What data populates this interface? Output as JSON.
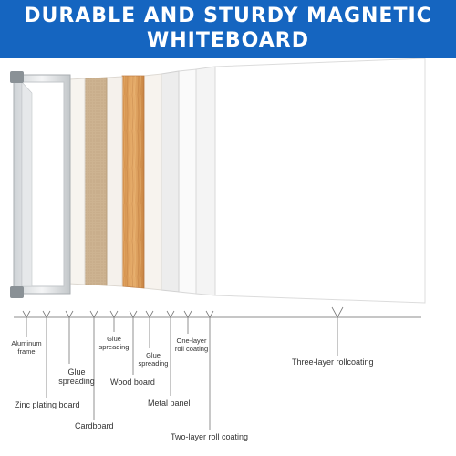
{
  "header": {
    "title_line1": "DURABLE AND STURDY MAGNETIC",
    "title_line2": "WHITEBOARD",
    "background_color": "#1565c0",
    "text_color": "#ffffff"
  },
  "layers": [
    {
      "key": "aluminum-frame",
      "label_line1": "Aluminum",
      "label_line2": "frame"
    },
    {
      "key": "zinc-plating-board",
      "label_line1": "Zinc plating board"
    },
    {
      "key": "glue-spreading-1",
      "label_line1": "Glue",
      "label_line2": "spreading"
    },
    {
      "key": "cardboard",
      "label_line1": "Cardboard"
    },
    {
      "key": "glue-spreading-2",
      "label_line1": "Glue",
      "label_line2": "spreading"
    },
    {
      "key": "wood-board",
      "label_line1": "Wood board"
    },
    {
      "key": "glue-spreading-3",
      "label_line1": "Glue",
      "label_line2": "spreading"
    },
    {
      "key": "metal-panel",
      "label_line1": "Metal panel"
    },
    {
      "key": "one-layer-roll-coating",
      "label_line1": "One-layer",
      "label_line2": "roll coating"
    },
    {
      "key": "two-layer-roll-coating",
      "label_line1": "Two-layer roll coating"
    },
    {
      "key": "three-layer-rollcoating",
      "label_line1": "Three-layer rollcoating"
    }
  ]
}
